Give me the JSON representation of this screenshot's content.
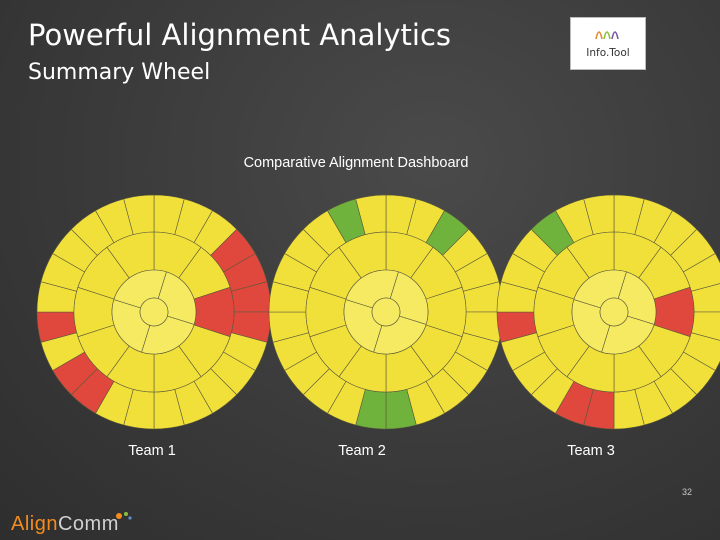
{
  "slide": {
    "title": "Powerful Alignment Analytics",
    "subtitle": "Summary Wheel",
    "page_number": "32"
  },
  "logo": {
    "text": "Info.Tool"
  },
  "dashboard": {
    "title": "Comparative Alignment Dashboard",
    "wheels": [
      {
        "label": "Team 1",
        "outer_colors": [
          "yellow",
          "yellow",
          "yellow",
          "red",
          "red",
          "red",
          "red",
          "yellow",
          "yellow",
          "yellow",
          "yellow",
          "yellow",
          "yellow",
          "yellow",
          "red",
          "red",
          "yellow",
          "red",
          "yellow",
          "yellow",
          "yellow",
          "yellow",
          "yellow",
          "yellow"
        ],
        "middle_colors": [
          "yellow",
          "yellow",
          "red",
          "yellow",
          "yellow",
          "yellow",
          "yellow",
          "yellow",
          "yellow",
          "yellow"
        ]
      },
      {
        "label": "Team 2",
        "outer_colors": [
          "yellow",
          "yellow",
          "green",
          "yellow",
          "yellow",
          "yellow",
          "yellow",
          "yellow",
          "yellow",
          "yellow",
          "yellow",
          "green",
          "green",
          "yellow",
          "yellow",
          "yellow",
          "yellow",
          "yellow",
          "yellow",
          "yellow",
          "yellow",
          "yellow",
          "green",
          "yellow"
        ],
        "middle_colors": [
          "yellow",
          "yellow",
          "yellow",
          "yellow",
          "yellow",
          "yellow",
          "yellow",
          "yellow",
          "yellow",
          "yellow"
        ]
      },
      {
        "label": "Team 3",
        "outer_colors": [
          "yellow",
          "yellow",
          "yellow",
          "yellow",
          "yellow",
          "yellow",
          "yellow",
          "yellow",
          "yellow",
          "yellow",
          "yellow",
          "yellow",
          "red",
          "red",
          "yellow",
          "yellow",
          "yellow",
          "red",
          "yellow",
          "yellow",
          "yellow",
          "green",
          "yellow",
          "yellow"
        ],
        "middle_colors": [
          "yellow",
          "yellow",
          "red",
          "yellow",
          "yellow",
          "yellow",
          "yellow",
          "yellow",
          "yellow",
          "yellow"
        ]
      }
    ]
  },
  "colors": {
    "yellow": "#f2e03a",
    "red": "#e0473d",
    "green": "#6fb33d",
    "center": "#f6ea62",
    "stroke": "#5a5a3a"
  },
  "footer": {
    "brand_part1": "Align",
    "brand_part2": "Comm"
  }
}
